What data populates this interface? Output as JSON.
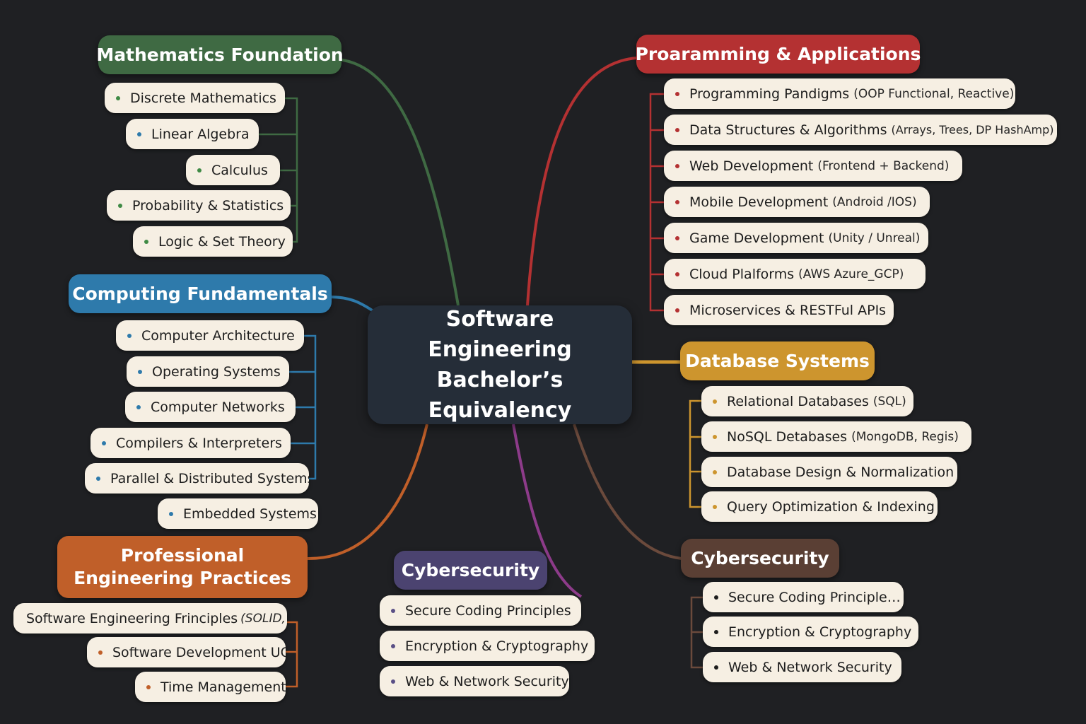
{
  "center": {
    "title": "Software Engineering Bachelor’s Equivalency"
  },
  "branches": {
    "math": {
      "title": "Mathematics Foundation",
      "color": "#3f6a43",
      "items": [
        {
          "label": "Discrete Mathematics"
        },
        {
          "label": "Linear Algebra"
        },
        {
          "label": "Calculus"
        },
        {
          "label": "Probability & Statistics"
        },
        {
          "label": "Logic & Set Theory"
        }
      ]
    },
    "computing": {
      "title": "Computing Fundamentals",
      "color": "#2e7aab",
      "items": [
        {
          "label": "Computer Architecture"
        },
        {
          "label": "Operating Systems"
        },
        {
          "label": "Computer Networks"
        },
        {
          "label": "Compilers & Interpreters"
        },
        {
          "label": "Parallel & Distributed Systems"
        },
        {
          "label": "Embedded Systems"
        }
      ]
    },
    "professional": {
      "title": "Professional Engineering Practices",
      "color": "#c05f29",
      "items": [
        {
          "label": "Software Engineering Frinciples",
          "detail": "(SOLID,"
        },
        {
          "label": "Software Development UC",
          "detail": "…"
        },
        {
          "label": "Time Management"
        }
      ]
    },
    "cyber_mid": {
      "title": "Cybersecurity",
      "color": "#4b4370",
      "items": [
        {
          "label": "Secure Coding Principles"
        },
        {
          "label": "Encryption & Cryptography"
        },
        {
          "label": "Web & Network Security"
        }
      ]
    },
    "programming": {
      "title": "Proaramming & Applications",
      "color": "#b43132",
      "items": [
        {
          "label": "Programming Pandigms",
          "detail": "(OOP Functional, Reactive)"
        },
        {
          "label": "Data Structures & Algorithms",
          "detail": "(Arrays, Trees, DP HashAmp)"
        },
        {
          "label": "Web Development",
          "detail": "(Frontend + Backend)"
        },
        {
          "label": "Mobile Development",
          "detail": "(Android /IOS)"
        },
        {
          "label": "Game Development",
          "detail": "(Unity / Unreal)"
        },
        {
          "label": "Cloud Plalforms",
          "detail": "(AWS Azure_GCP)"
        },
        {
          "label": "Microservices & RESTFul APIs"
        }
      ]
    },
    "database": {
      "title": "Database Systems",
      "color": "#cd952e",
      "items": [
        {
          "label": "Relational Databases",
          "detail": "(SQL)"
        },
        {
          "label": "NoSQL Detabases",
          "detail": "(MongoDB, Regis)"
        },
        {
          "label": "Database Design & Normalization"
        },
        {
          "label": "Query Optimization & Indexing"
        }
      ]
    },
    "cyber_right": {
      "title": "Cybersecurity",
      "color": "#5a3f34",
      "items": [
        {
          "label": "Secure Coding Principle…"
        },
        {
          "label": "Encryption & Cryptography"
        },
        {
          "label": "Web & Network Security"
        }
      ]
    }
  },
  "colors": {
    "background": "#1f2023",
    "center_box": "#252d38",
    "pill": "#f6efe3",
    "cyber_mid_connector": "#8d3b8a",
    "cyber_right_connector": "#6b4a3c"
  }
}
